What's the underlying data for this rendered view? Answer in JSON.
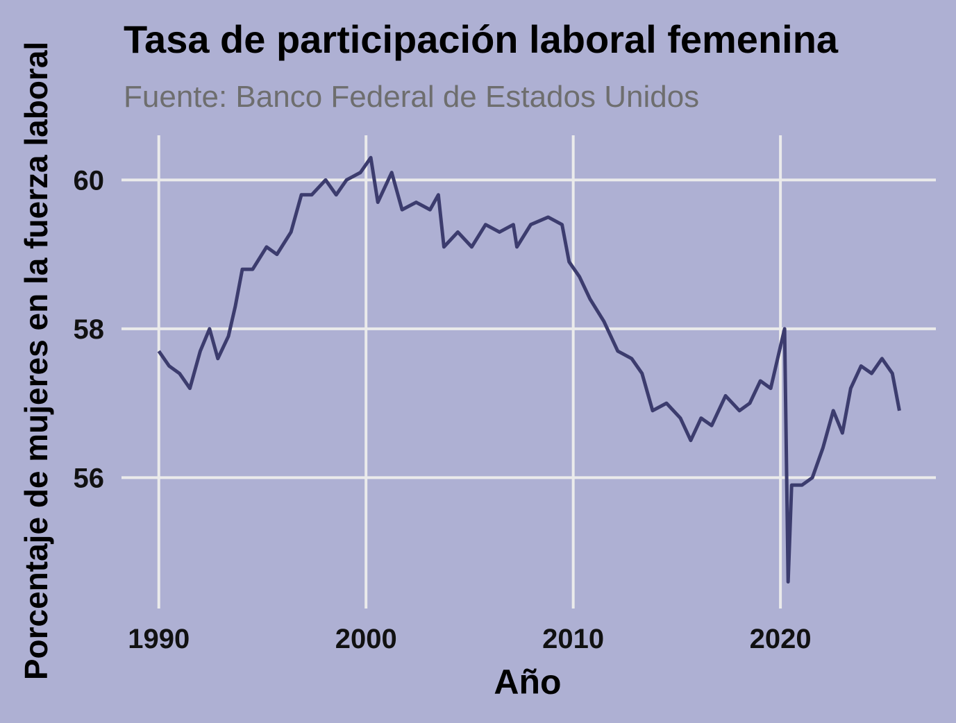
{
  "chart_data": {
    "type": "line",
    "title": "Tasa de participación laboral femenina",
    "subtitle": "Fuente: Banco Federal de Estados Unidos",
    "x_label": "Año",
    "y_label": "Porcentaje de mujeres en la fuerza laboral",
    "x": [
      1990.0,
      1990.5,
      1991.0,
      1991.5,
      1992.0,
      1992.45,
      1992.85,
      1993.36,
      1993.69,
      1994.03,
      1994.53,
      1995.2,
      1995.7,
      1996.38,
      1996.88,
      1997.38,
      1998.05,
      1998.56,
      1999.06,
      1999.73,
      2000.23,
      2000.57,
      2001.24,
      2001.74,
      2002.42,
      2003.09,
      2003.49,
      2003.76,
      2004.43,
      2005.1,
      2005.77,
      2006.44,
      2007.11,
      2007.28,
      2007.95,
      2008.79,
      2009.46,
      2009.8,
      2010.3,
      2010.81,
      2011.48,
      2012.15,
      2012.82,
      2013.32,
      2013.83,
      2014.5,
      2015.17,
      2015.67,
      2016.17,
      2016.68,
      2017.35,
      2018.02,
      2018.52,
      2019.03,
      2019.53,
      2020.03,
      2020.2,
      2020.37,
      2020.54,
      2021.04,
      2021.54,
      2022.05,
      2022.55,
      2022.99,
      2023.39,
      2023.89,
      2024.4,
      2024.9,
      2025.4,
      2025.74
    ],
    "series": [
      {
        "color": "#3c3c6e",
        "values": [
          57.7,
          57.5,
          57.4,
          57.2,
          57.7,
          58.0,
          57.6,
          57.9,
          58.3,
          58.8,
          58.8,
          59.1,
          59.0,
          59.3,
          59.8,
          59.8,
          60.0,
          59.8,
          60.0,
          60.1,
          60.3,
          59.7,
          60.1,
          59.6,
          59.7,
          59.6,
          59.8,
          59.1,
          59.3,
          59.1,
          59.4,
          59.3,
          59.4,
          59.1,
          59.4,
          59.5,
          59.4,
          58.9,
          58.7,
          58.4,
          58.1,
          57.7,
          57.6,
          57.4,
          56.9,
          57.0,
          56.8,
          56.5,
          56.8,
          56.7,
          57.1,
          56.9,
          57.0,
          57.3,
          57.2,
          57.8,
          58.0,
          54.6,
          55.9,
          55.9,
          56.0,
          56.4,
          56.9,
          56.6,
          57.2,
          57.5,
          57.4,
          57.6,
          57.4,
          56.9
        ]
      }
    ],
    "xlim": [
      1988.2,
      2027.5
    ],
    "ylim": [
      54.4,
      60.6
    ],
    "xticks": [
      1990,
      2000,
      2010,
      2020
    ],
    "yticks": [
      56,
      58,
      60
    ],
    "grid": true
  }
}
